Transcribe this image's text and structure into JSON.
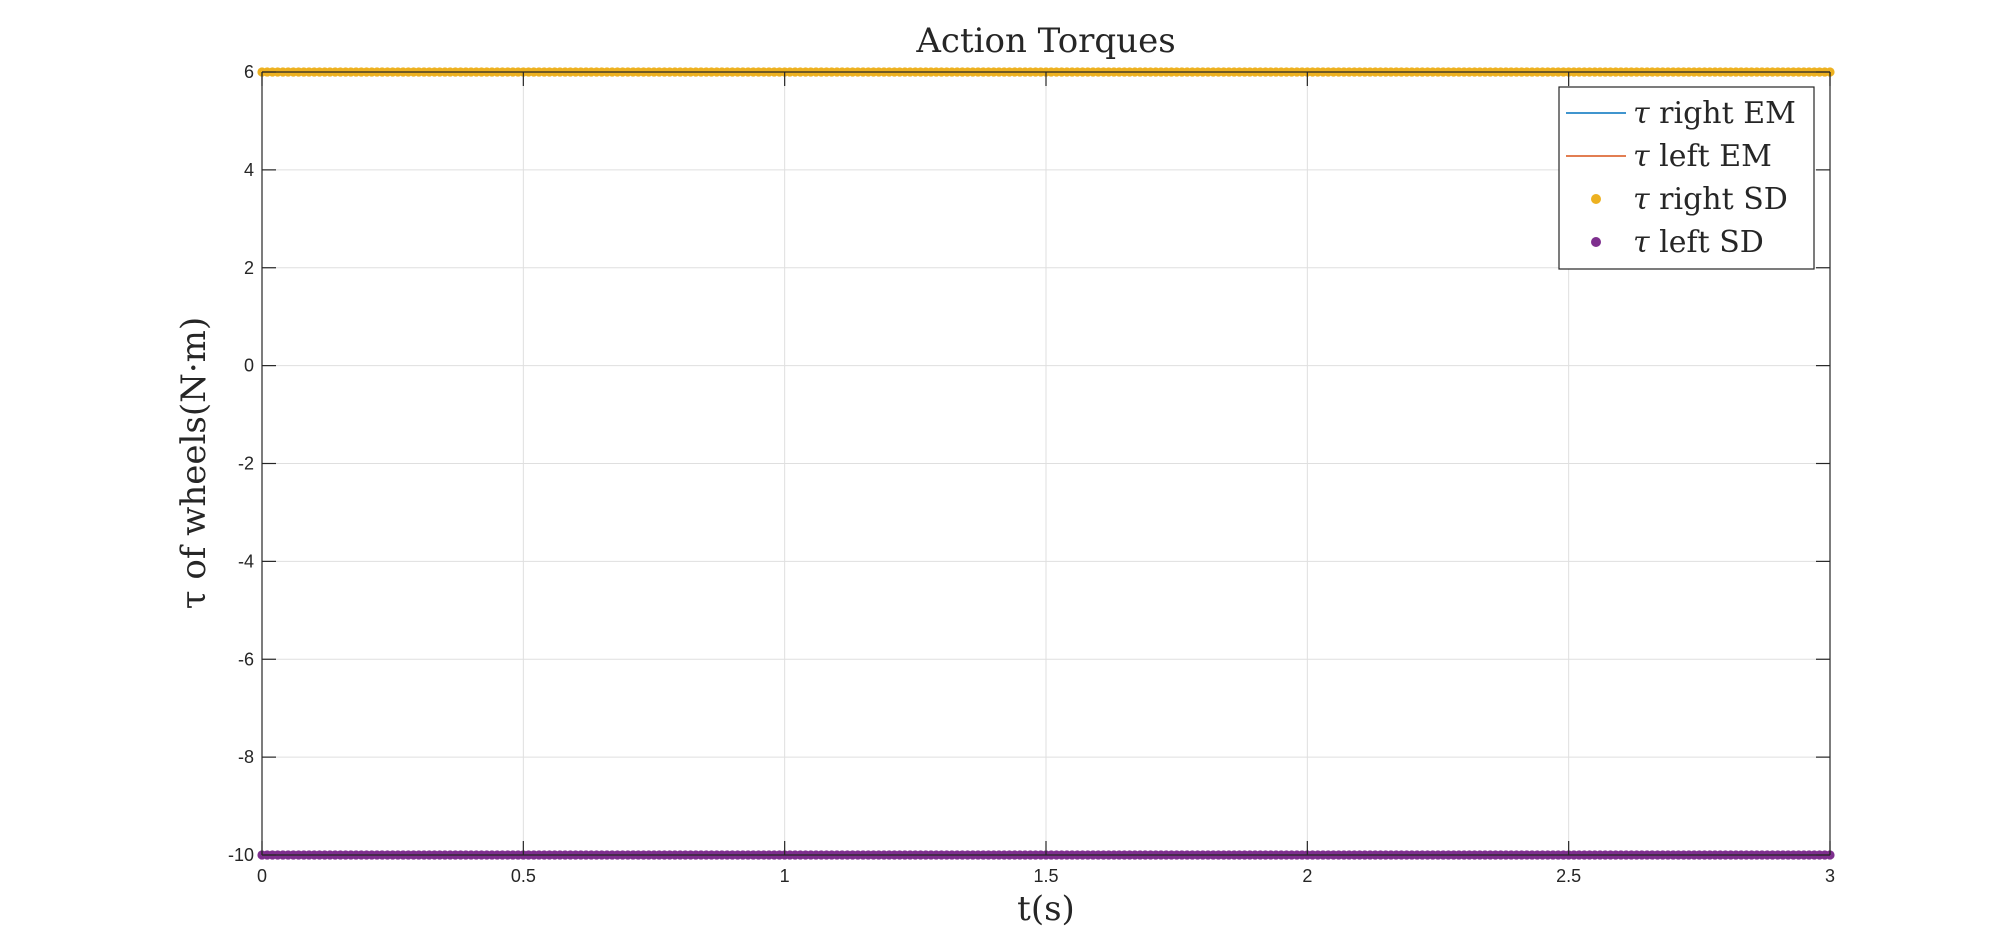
{
  "chart_data": {
    "type": "line",
    "title": "Action Torques",
    "xlabel": "t(s)",
    "ylabel": "τ of wheels(N·m)",
    "xlim": [
      0,
      3
    ],
    "ylim": [
      -10,
      6
    ],
    "xticks": [
      0,
      0.5,
      1,
      1.5,
      2,
      2.5,
      3
    ],
    "xtick_labels": [
      "0",
      "0.5",
      "1",
      "1.5",
      "2",
      "2.5",
      "3"
    ],
    "yticks": [
      6,
      4,
      2,
      0,
      -2,
      -4,
      -6,
      -8,
      -10
    ],
    "ytick_labels": [
      "6",
      "4",
      "2",
      "0",
      "-2",
      "-4",
      "-6",
      "-8",
      "-10"
    ],
    "grid": true,
    "legend_position": "top-right",
    "series": [
      {
        "name": "τ right EM",
        "style": "line",
        "color": "#0072BD",
        "x": [
          0,
          3
        ],
        "values": [
          6,
          6
        ]
      },
      {
        "name": "τ left EM",
        "style": "line",
        "color": "#D95319",
        "x": [
          0,
          3
        ],
        "values": [
          -10,
          -10
        ]
      },
      {
        "name": "τ right SD",
        "style": "markers",
        "color": "#EDB120",
        "x_start": 0,
        "x_end": 3,
        "x_step": 0.01,
        "value": 6
      },
      {
        "name": "τ left SD",
        "style": "markers",
        "color": "#7E2F8E",
        "x_start": 0,
        "x_end": 3,
        "x_step": 0.01,
        "value": -10
      }
    ],
    "legend": [
      {
        "symbol": "τ",
        "text": "right EM"
      },
      {
        "symbol": "τ",
        "text": "left EM"
      },
      {
        "symbol": "τ",
        "text": "right SD"
      },
      {
        "symbol": "τ",
        "text": "left SD"
      }
    ]
  }
}
